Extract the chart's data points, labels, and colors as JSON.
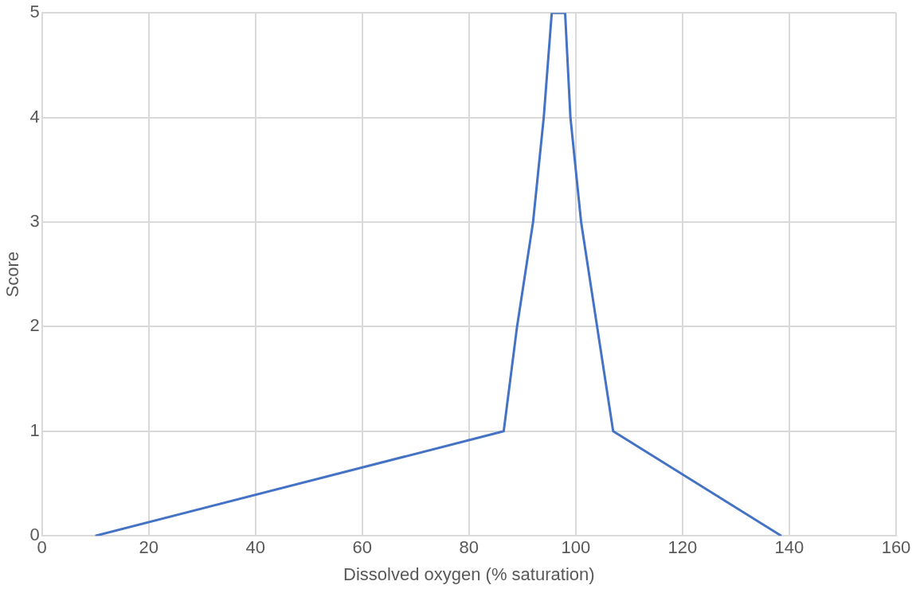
{
  "chart_data": {
    "type": "line",
    "xlabel": "Dissolved oxygen (% saturation)",
    "ylabel": "Score",
    "x": [
      10,
      86.5,
      89,
      92,
      94,
      95.5,
      98,
      99,
      101,
      104,
      107,
      138.5
    ],
    "series": [
      {
        "color": "#4472c4",
        "values": [
          0,
          1,
          2,
          3,
          4,
          5,
          5,
          4,
          3,
          2,
          1,
          0
        ]
      }
    ],
    "xlim": [
      0,
      160
    ],
    "xticks": [
      0,
      20,
      40,
      60,
      80,
      100,
      120,
      140,
      160
    ],
    "ylim": [
      0,
      5
    ],
    "yticks": [
      0,
      1,
      2,
      3,
      4,
      5
    ],
    "grid": true,
    "legend": false,
    "marker": "none",
    "line_style": "solid"
  }
}
